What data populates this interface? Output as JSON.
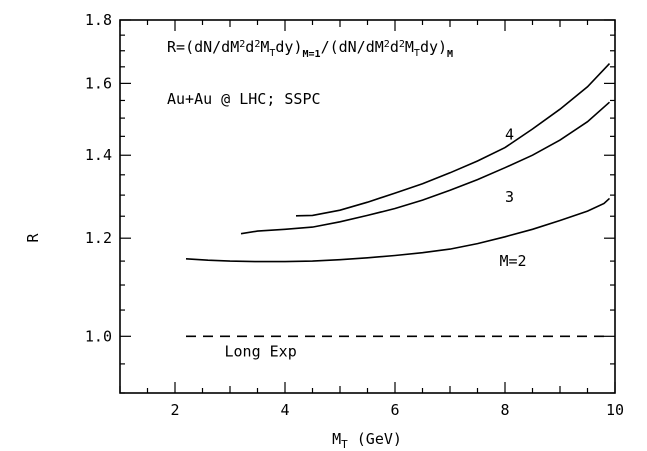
{
  "chart_data": {
    "type": "line",
    "xlabel_main": "M",
    "xlabel_sub": "T",
    "xlabel_unit": " (GeV)",
    "ylabel": "R",
    "xlim": [
      1,
      10
    ],
    "ylim": [
      0.9,
      1.8
    ],
    "y_scale": "log",
    "xticks": [
      2,
      4,
      6,
      8,
      10
    ],
    "yticks": [
      1.0,
      1.2,
      1.4,
      1.6,
      1.8
    ],
    "ytick_labels": [
      "1.0",
      "1.2",
      "1.4",
      "1.6",
      "1.8"
    ],
    "grid": false,
    "formula": {
      "r": "R=",
      "p1": "(dN/dM",
      "s1": "2",
      "d1": "d",
      "s2": "2",
      "m1": "M",
      "b1": "T",
      "dy1": "dy)",
      "b2": "M=1",
      "slash": "/",
      "p2": "(dN/dM",
      "s3": "2",
      "d2": "d",
      "s4": "2",
      "m2": "M",
      "b3": "T",
      "dy2": "dy)",
      "b4": "M"
    },
    "annotation": "Au+Au @ LHC; SSPC",
    "series": [
      {
        "name": "M=2",
        "x": [
          2.2,
          2.6,
          3.0,
          3.5,
          4.0,
          4.5,
          5.0,
          5.5,
          6.0,
          6.5,
          7.0,
          7.5,
          8.0,
          8.5,
          9.0,
          9.5,
          9.8,
          9.9
        ],
        "y": [
          1.155,
          1.152,
          1.15,
          1.149,
          1.149,
          1.15,
          1.153,
          1.157,
          1.162,
          1.168,
          1.176,
          1.188,
          1.203,
          1.22,
          1.24,
          1.262,
          1.28,
          1.292
        ]
      },
      {
        "name": "3",
        "x": [
          3.2,
          3.5,
          4.0,
          4.5,
          5.0,
          5.5,
          6.0,
          6.5,
          7.0,
          7.5,
          8.0,
          8.5,
          9.0,
          9.5,
          9.9
        ],
        "y": [
          1.21,
          1.216,
          1.22,
          1.225,
          1.237,
          1.252,
          1.268,
          1.288,
          1.312,
          1.338,
          1.368,
          1.4,
          1.44,
          1.49,
          1.545
        ]
      },
      {
        "name": "4",
        "x": [
          4.2,
          4.5,
          5.0,
          5.5,
          6.0,
          6.5,
          7.0,
          7.5,
          8.0,
          8.5,
          9.0,
          9.5,
          9.9
        ],
        "y": [
          1.251,
          1.252,
          1.264,
          1.283,
          1.305,
          1.328,
          1.355,
          1.385,
          1.42,
          1.47,
          1.525,
          1.59,
          1.66
        ]
      }
    ],
    "reference_line": {
      "label": "Long Exp",
      "y": 1.0
    },
    "curve_labels": [
      {
        "text": "4",
        "x": 8.0,
        "y": 1.455
      },
      {
        "text": "3",
        "x": 8.0,
        "y": 1.295
      },
      {
        "text": "M=2",
        "x": 7.9,
        "y": 1.15
      }
    ]
  }
}
